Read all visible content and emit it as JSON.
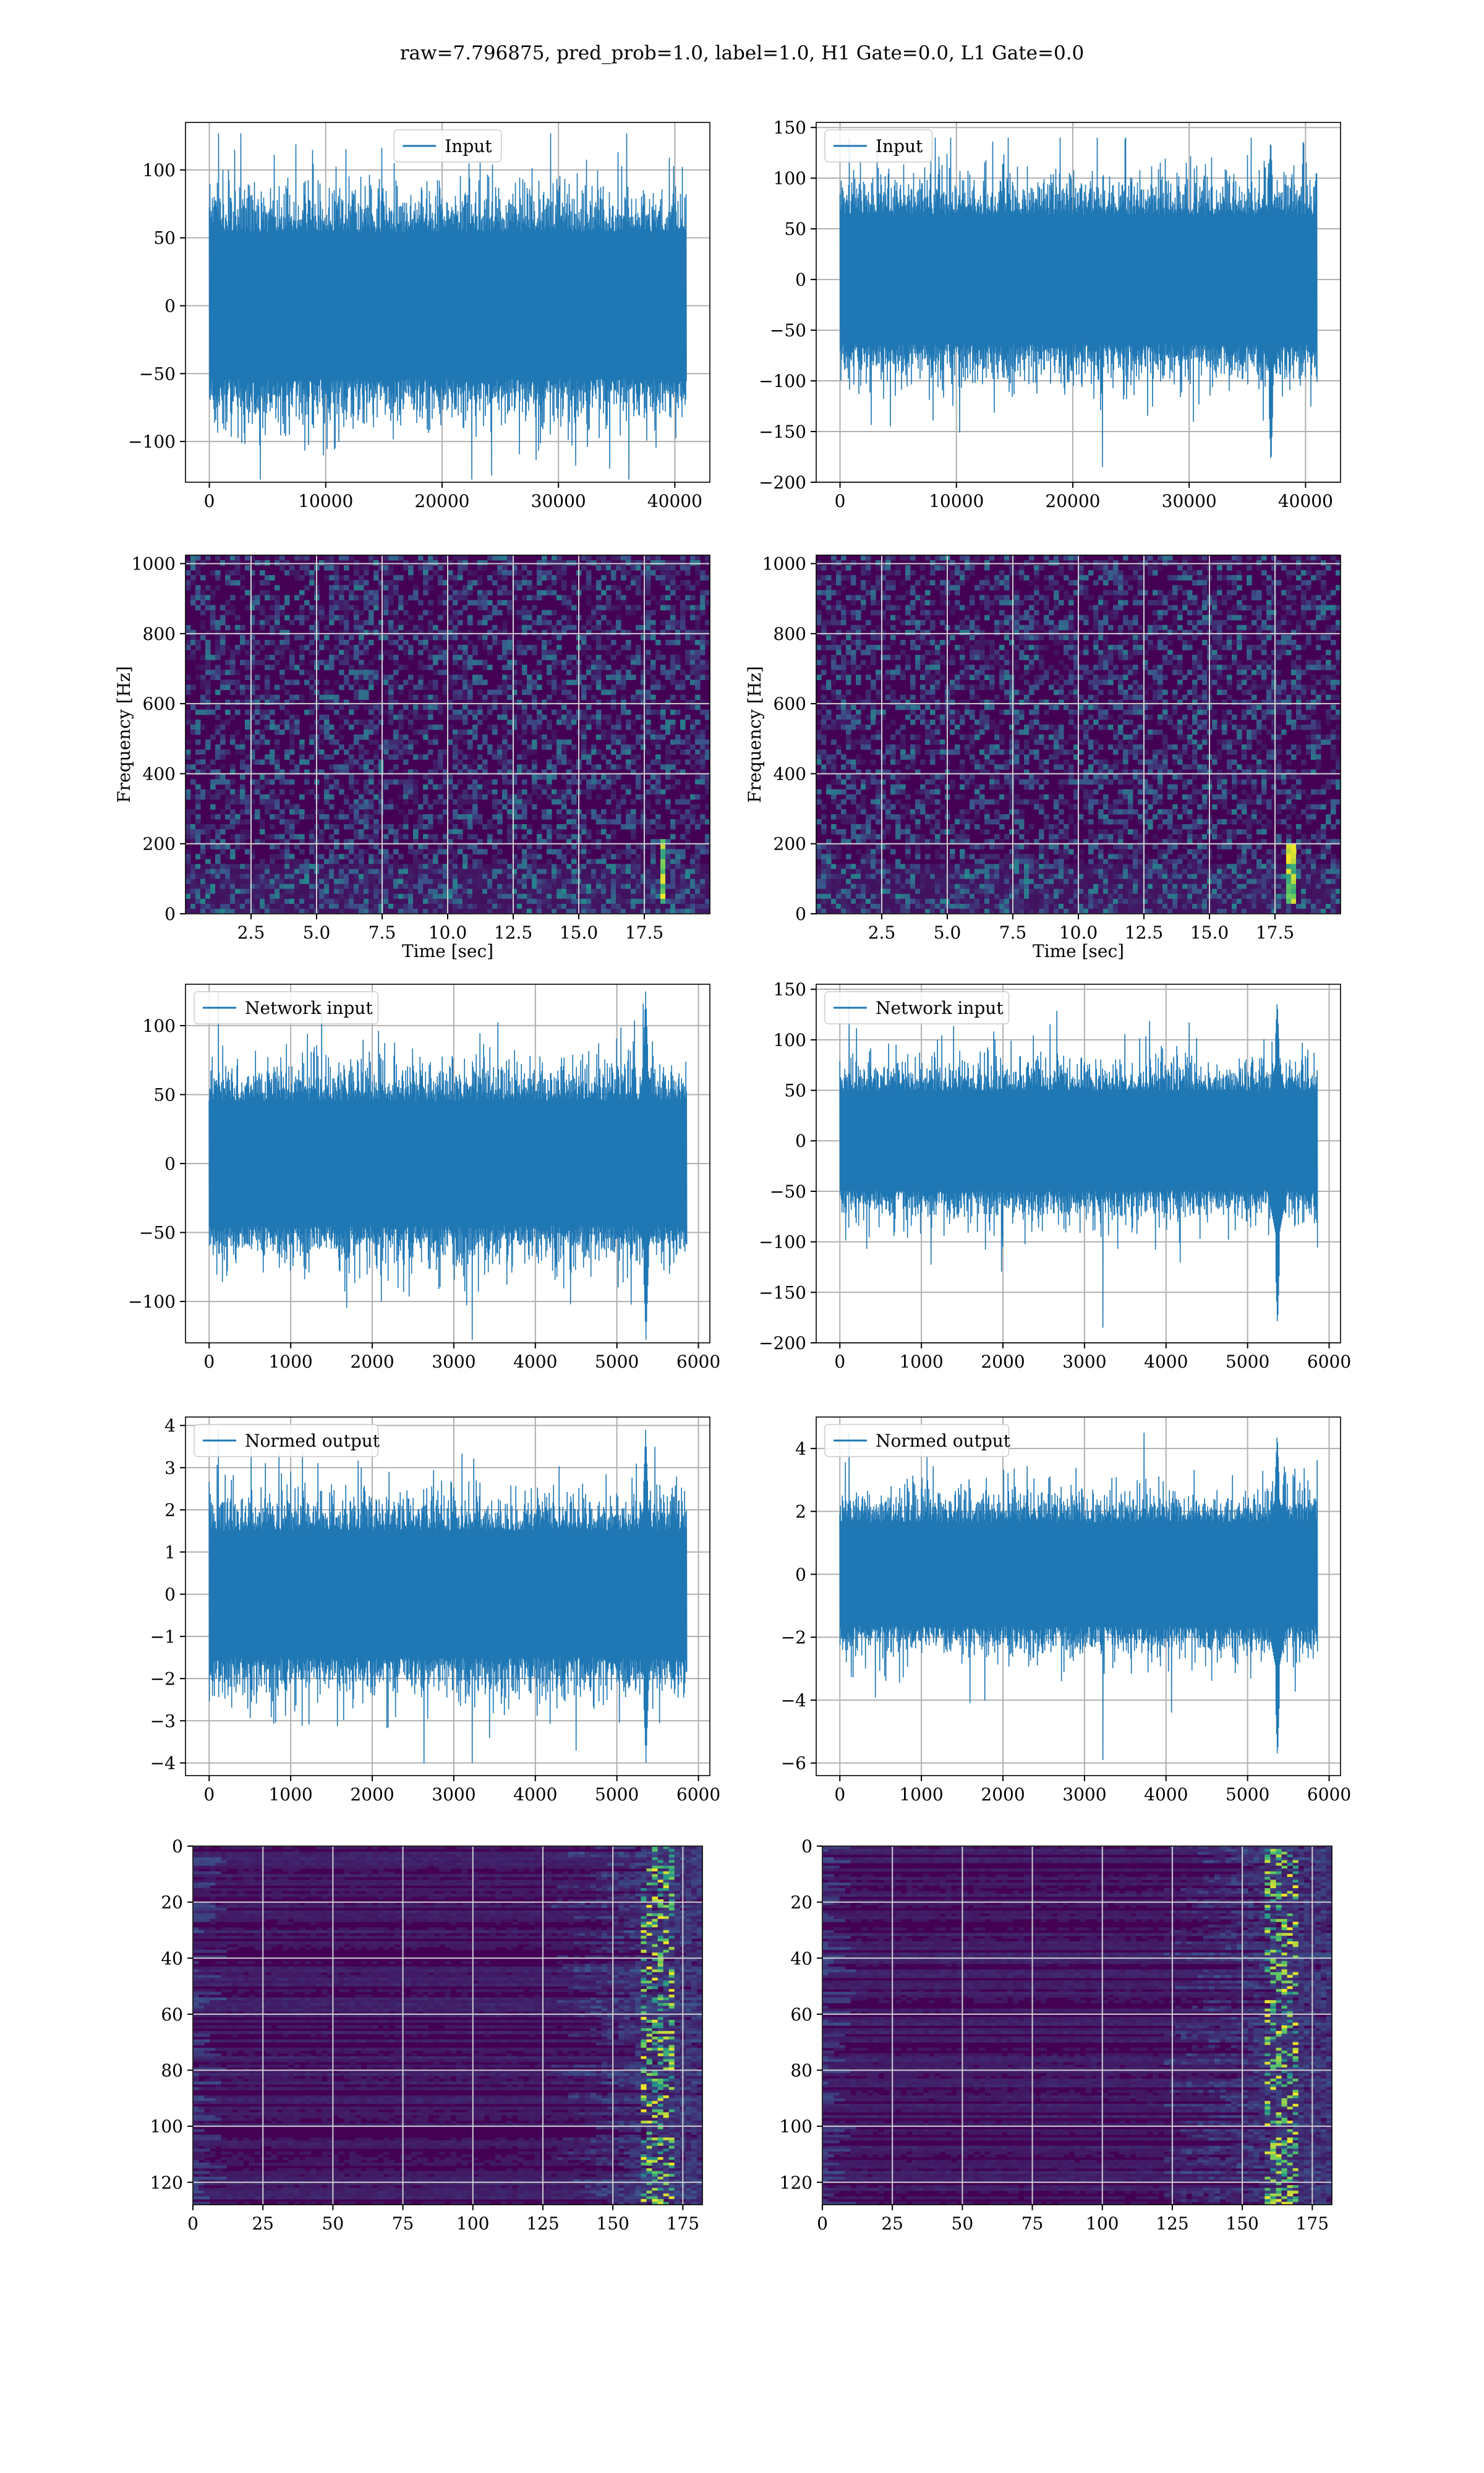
{
  "figure_title": "raw=7.796875, pred_prob=1.0, label=1.0, H1 Gate=0.0, L1 Gate=0.0",
  "colors": {
    "line": "#1f77b4",
    "grid": "#b0b0b0",
    "viridis_low": "#440154",
    "viridis_mid": "#21918c",
    "viridis_high": "#fde725"
  },
  "chart_data": [
    {
      "type": "line",
      "legend": "Input",
      "legend_placement": "top-center",
      "xlim": [
        -2048,
        43008
      ],
      "ylim": [
        -130,
        135
      ],
      "xticks": [
        0,
        10000,
        20000,
        30000,
        40000
      ],
      "yticks": [
        -100,
        -50,
        0,
        50,
        100
      ],
      "signal": {
        "x_start": 0,
        "x_end": 40960,
        "envelope": 72,
        "peak_max": 127,
        "peak_min": -128,
        "events": []
      },
      "grid": true
    },
    {
      "type": "line",
      "legend": "Input",
      "legend_placement": "top-left",
      "xlim": [
        -2048,
        43008
      ],
      "ylim": [
        -200,
        155
      ],
      "xticks": [
        0,
        10000,
        20000,
        30000,
        40000
      ],
      "yticks": [
        -200,
        -150,
        -100,
        -50,
        0,
        50,
        100,
        150
      ],
      "signal": {
        "x_start": 0,
        "x_end": 40960,
        "envelope": 85,
        "peak_max": 140,
        "peak_min": -185,
        "events": [
          {
            "x": 37000,
            "min": -185,
            "max": 140
          }
        ]
      },
      "grid": true
    },
    {
      "type": "heatmap",
      "kind": "spectrogram",
      "xlabel": "Time [sec]",
      "ylabel": "Frequency [Hz]",
      "xlim": [
        0,
        20
      ],
      "ylim": [
        0,
        1024
      ],
      "xticks": [
        2.5,
        5.0,
        7.5,
        10.0,
        12.5,
        15.0,
        17.5
      ],
      "yticks": [
        0,
        200,
        400,
        600,
        800,
        1000
      ],
      "hotspot": {
        "t": 18.2,
        "f_min": 30,
        "f_max": 220
      },
      "grid": true
    },
    {
      "type": "heatmap",
      "kind": "spectrogram",
      "xlabel": "Time [sec]",
      "ylabel": "Frequency [Hz]",
      "xlim": [
        0,
        20
      ],
      "ylim": [
        0,
        1024
      ],
      "xticks": [
        2.5,
        5.0,
        7.5,
        10.0,
        12.5,
        15.0,
        17.5
      ],
      "yticks": [
        0,
        200,
        400,
        600,
        800,
        1000
      ],
      "hotspot": {
        "t": 18.1,
        "f_min": 30,
        "f_max": 200
      },
      "grid": true
    },
    {
      "type": "line",
      "legend": "Network input",
      "legend_placement": "top-left",
      "xlim": [
        -290,
        6140
      ],
      "ylim": [
        -130,
        130
      ],
      "xticks": [
        0,
        1000,
        2000,
        3000,
        4000,
        5000,
        6000
      ],
      "yticks": [
        -100,
        -50,
        0,
        50,
        100
      ],
      "signal": {
        "x_start": 0,
        "x_end": 5850,
        "envelope": 60,
        "peak_max": 125,
        "peak_min": -128,
        "events": [
          {
            "x": 5350,
            "min": -128,
            "max": 125
          }
        ]
      },
      "grid": true
    },
    {
      "type": "line",
      "legend": "Network input",
      "legend_placement": "top-left",
      "xlim": [
        -290,
        6140
      ],
      "ylim": [
        -200,
        155
      ],
      "xticks": [
        0,
        1000,
        2000,
        3000,
        4000,
        5000,
        6000
      ],
      "yticks": [
        -200,
        -150,
        -100,
        -50,
        0,
        50,
        100,
        150
      ],
      "signal": {
        "x_start": 0,
        "x_end": 5850,
        "envelope": 65,
        "peak_max": 140,
        "peak_min": -185,
        "events": [
          {
            "x": 5360,
            "min": -185,
            "max": 140
          }
        ]
      },
      "grid": true
    },
    {
      "type": "line",
      "legend": "Normed output",
      "legend_placement": "top-left",
      "xlim": [
        -290,
        6140
      ],
      "ylim": [
        -4.3,
        4.2
      ],
      "xticks": [
        0,
        1000,
        2000,
        3000,
        4000,
        5000,
        6000
      ],
      "yticks": [
        -4,
        -3,
        -2,
        -1,
        0,
        1,
        2,
        3,
        4
      ],
      "signal": {
        "x_start": 0,
        "x_end": 5850,
        "envelope": 2.0,
        "peak_max": 3.9,
        "peak_min": -4.0,
        "events": [
          {
            "x": 5350,
            "min": -4.0,
            "max": 3.9
          }
        ]
      },
      "grid": true
    },
    {
      "type": "line",
      "legend": "Normed output",
      "legend_placement": "top-left",
      "xlim": [
        -290,
        6140
      ],
      "ylim": [
        -6.4,
        5.0
      ],
      "xticks": [
        0,
        1000,
        2000,
        3000,
        4000,
        5000,
        6000
      ],
      "yticks": [
        -6,
        -4,
        -2,
        0,
        2,
        4
      ],
      "signal": {
        "x_start": 0,
        "x_end": 5850,
        "envelope": 2.2,
        "peak_max": 4.5,
        "peak_min": -5.9,
        "events": [
          {
            "x": 5360,
            "min": -5.9,
            "max": 4.5
          }
        ]
      },
      "grid": true
    },
    {
      "type": "heatmap",
      "kind": "feature_map",
      "xlim": [
        0,
        182
      ],
      "ylim": [
        128,
        0
      ],
      "xticks": [
        0,
        25,
        50,
        75,
        100,
        125,
        150,
        175
      ],
      "yticks": [
        0,
        20,
        40,
        60,
        80,
        100,
        120
      ],
      "active_region": {
        "x_min": 125,
        "x_max": 182,
        "peak_x": 165
      },
      "grid": true
    },
    {
      "type": "heatmap",
      "kind": "feature_map",
      "xlim": [
        0,
        182
      ],
      "ylim": [
        128,
        0
      ],
      "xticks": [
        0,
        25,
        50,
        75,
        100,
        125,
        150,
        175
      ],
      "yticks": [
        0,
        20,
        40,
        60,
        80,
        100,
        120
      ],
      "active_region": {
        "x_min": 120,
        "x_max": 182,
        "peak_x": 163
      },
      "grid": true
    }
  ]
}
